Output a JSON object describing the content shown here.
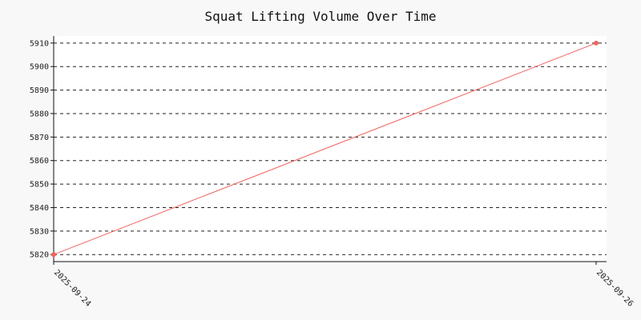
{
  "chart_data": {
    "type": "line",
    "title": "Squat Lifting Volume Over Time",
    "xlabel": "",
    "ylabel": "",
    "x": [
      "2025-09-24",
      "2025-09-26"
    ],
    "series": [
      {
        "values": [
          5820,
          5910
        ],
        "color": "#f0625c"
      }
    ],
    "yticks": [
      5820,
      5830,
      5840,
      5850,
      5860,
      5870,
      5880,
      5890,
      5900,
      5910
    ],
    "ylim": [
      5817,
      5913
    ],
    "grid": true,
    "legend": "none",
    "colors": {
      "background": "#f8f8f8",
      "plot_background": "#ffffff",
      "grid": "#222222",
      "axis": "#111111"
    }
  }
}
